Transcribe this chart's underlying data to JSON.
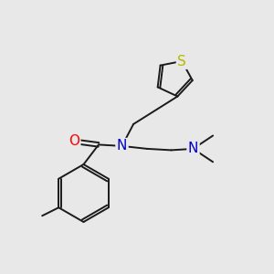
{
  "background_color": "#e8e8e8",
  "bond_color": "#1a1a1a",
  "atom_colors": {
    "O": "#ff0000",
    "N": "#0000cc",
    "S": "#b8b800",
    "C": "#1a1a1a"
  },
  "font_size_atoms": 11,
  "fig_size": [
    3.0,
    3.0
  ],
  "dpi": 100,
  "lw": 1.4
}
